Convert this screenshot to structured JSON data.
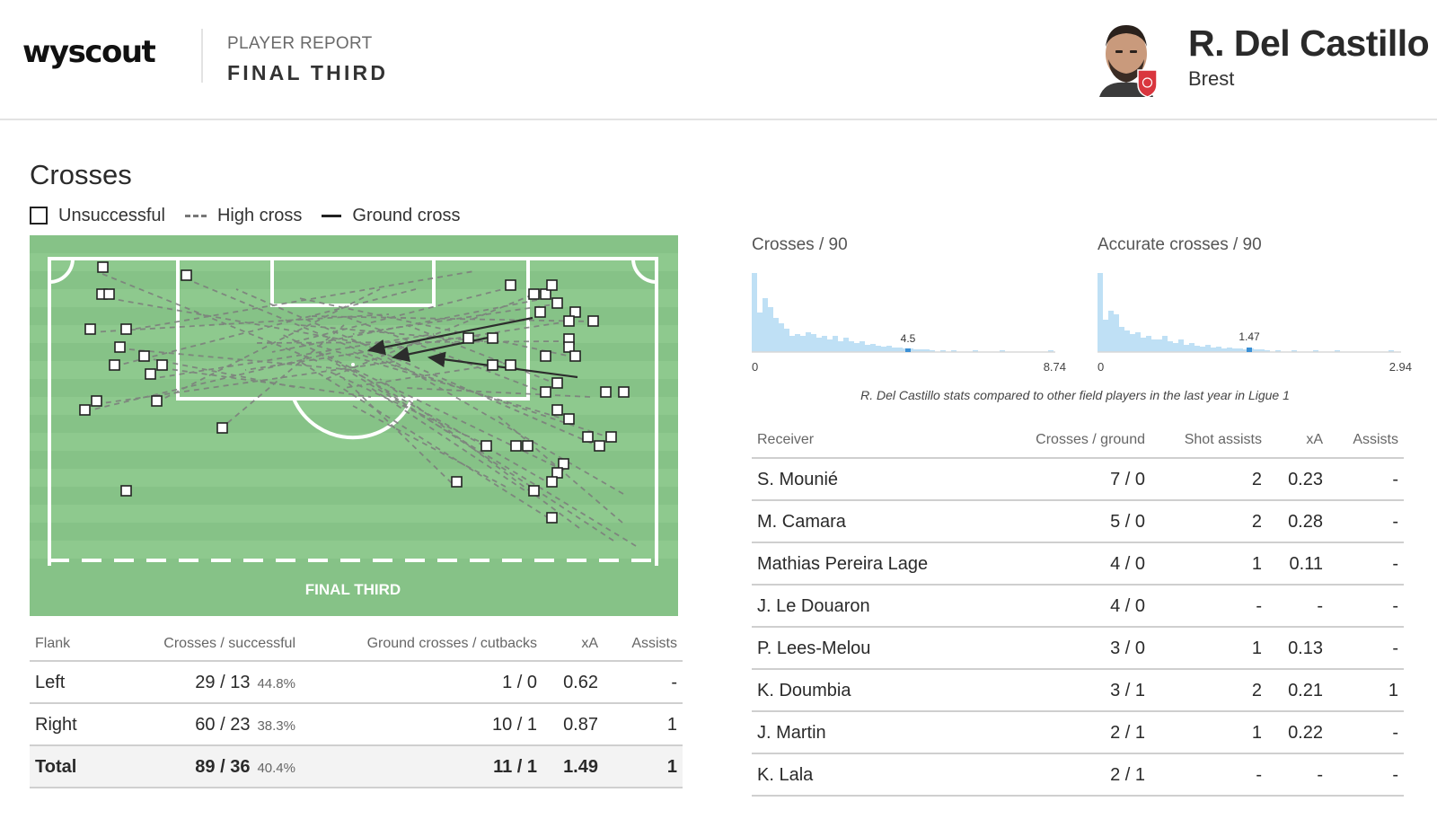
{
  "header": {
    "logo": "wyscout",
    "report_type": "PLAYER REPORT",
    "report_title": "FINAL THIRD",
    "player_name": "R. Del Castillo",
    "club": "Brest",
    "club_badge_color": "#d9363e"
  },
  "crosses": {
    "title": "Crosses",
    "legend": {
      "unsuccessful": "Unsuccessful",
      "high_cross": "High cross",
      "ground_cross": "Ground cross"
    },
    "pitch_label": "FINAL THIRD",
    "pitch_colors": {
      "grass": "#86c287",
      "grass_stripe": "#8fc98f",
      "lines": "#ffffff"
    },
    "flank_table": {
      "headers": [
        "Flank",
        "Crosses / successful",
        "Ground crosses / cutbacks",
        "xA",
        "Assists"
      ],
      "rows": [
        {
          "flank": "Left",
          "crosses": "29 / 13",
          "pct": "44.8%",
          "ground": "1 / 0",
          "xa": "0.62",
          "assists": "-"
        },
        {
          "flank": "Right",
          "crosses": "60 / 23",
          "pct": "38.3%",
          "ground": "10 / 1",
          "xa": "0.87",
          "assists": "1"
        },
        {
          "flank": "Total",
          "crosses": "89 / 36",
          "pct": "40.4%",
          "ground": "11 / 1",
          "xa": "1.49",
          "assists": "1"
        }
      ]
    }
  },
  "distributions": {
    "note": "R. Del Castillo stats compared to other field players in the last year in Ligue 1",
    "bar_color": "#bfe0f5",
    "marker_color": "#3b8fd4",
    "crosses_per_90": {
      "title": "Crosses / 90",
      "min_label": "0",
      "max_label": "8.74",
      "player_label": "4.5",
      "player_value": 4.5,
      "max": 8.74
    },
    "accurate_crosses_per_90": {
      "title": "Accurate crosses / 90",
      "min_label": "0",
      "max_label": "2.94",
      "player_label": "1.47",
      "player_value": 1.47,
      "max": 2.94
    }
  },
  "receivers": {
    "headers": [
      "Receiver",
      "Crosses / ground",
      "Shot assists",
      "xA",
      "Assists"
    ],
    "rows": [
      {
        "name": "S. Mounié",
        "crosses": "7 / 0",
        "shot_assists": "2",
        "xa": "0.23",
        "assists": "-"
      },
      {
        "name": "M. Camara",
        "crosses": "5 / 0",
        "shot_assists": "2",
        "xa": "0.28",
        "assists": "-"
      },
      {
        "name": "Mathias Pereira Lage",
        "crosses": "4 / 0",
        "shot_assists": "1",
        "xa": "0.11",
        "assists": "-"
      },
      {
        "name": "J. Le Douaron",
        "crosses": "4 / 0",
        "shot_assists": "-",
        "xa": "-",
        "assists": "-"
      },
      {
        "name": "P. Lees-Melou",
        "crosses": "3 / 0",
        "shot_assists": "1",
        "xa": "0.13",
        "assists": "-"
      },
      {
        "name": "K. Doumbia",
        "crosses": "3 / 1",
        "shot_assists": "2",
        "xa": "0.21",
        "assists": "1"
      },
      {
        "name": "J. Martin",
        "crosses": "2 / 1",
        "shot_assists": "1",
        "xa": "0.22",
        "assists": "-"
      },
      {
        "name": "K. Lala",
        "crosses": "2 / 1",
        "shot_assists": "-",
        "xa": "-",
        "assists": "-"
      }
    ]
  }
}
